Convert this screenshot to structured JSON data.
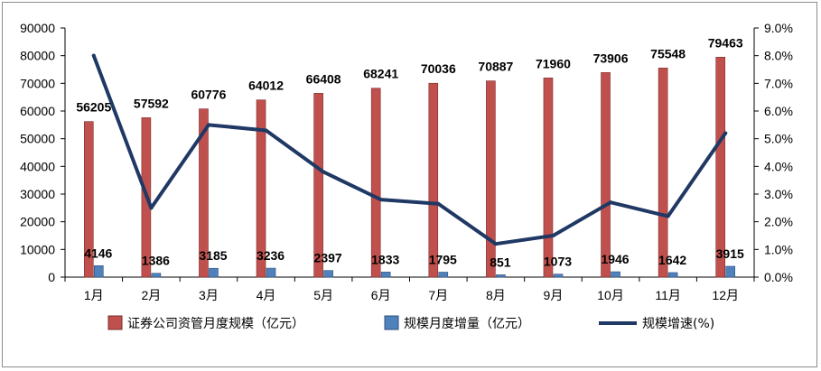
{
  "chart_data": {
    "type": "bar",
    "categories": [
      "1月",
      "2月",
      "3月",
      "4月",
      "5月",
      "6月",
      "7月",
      "8月",
      "9月",
      "10月",
      "11月",
      "12月"
    ],
    "series": [
      {
        "name": "证券公司资管月度规模（亿元）",
        "kind": "bar",
        "axis": "left",
        "color": "#c0504d",
        "values": [
          56205,
          57592,
          60776,
          64012,
          66408,
          68241,
          70036,
          70887,
          71960,
          73906,
          75548,
          79463
        ]
      },
      {
        "name": "规模月度增量（亿元）",
        "kind": "bar",
        "axis": "left",
        "color": "#4f81bd",
        "values": [
          4146,
          1386,
          3185,
          3236,
          2397,
          1833,
          1795,
          851,
          1073,
          1946,
          1642,
          3915
        ]
      },
      {
        "name": "规模增速(%)",
        "kind": "line",
        "axis": "right",
        "color": "#1f3864",
        "values": [
          8.0,
          2.5,
          5.5,
          5.3,
          3.8,
          2.8,
          2.65,
          1.2,
          1.5,
          2.7,
          2.2,
          5.2
        ]
      }
    ],
    "y_left": {
      "range": [
        0,
        90000
      ],
      "ticks": [
        "0",
        "10000",
        "20000",
        "30000",
        "40000",
        "50000",
        "60000",
        "70000",
        "80000",
        "90000"
      ]
    },
    "y_right": {
      "range": [
        0,
        9
      ],
      "ticks": [
        "0.0%",
        "1.0%",
        "2.0%",
        "3.0%",
        "4.0%",
        "5.0%",
        "6.0%",
        "7.0%",
        "8.0%",
        "9.0%"
      ]
    },
    "grid": false,
    "legend": "bottom"
  }
}
